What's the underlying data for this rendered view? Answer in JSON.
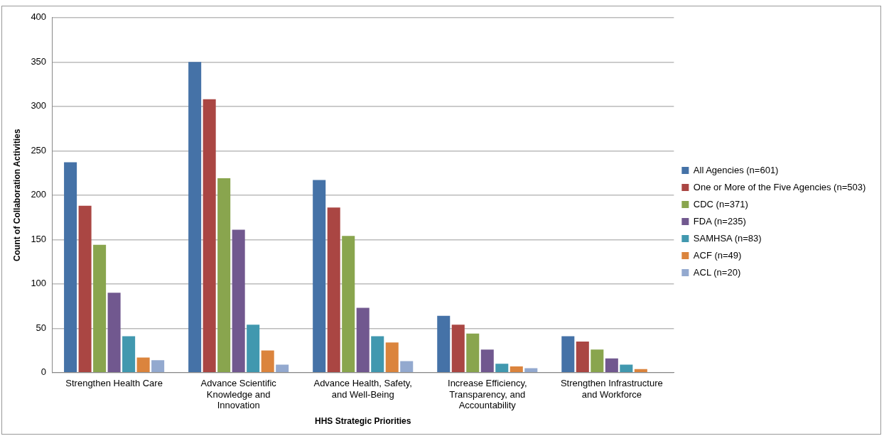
{
  "chart_data": {
    "type": "bar",
    "xlabel": "HHS Strategic Priorities",
    "ylabel": "Count of Collaboration Activities",
    "categories": [
      "Strengthen Health Care",
      "Advance Scientific Knowledge and Innovation",
      "Advance Health, Safety, and Well-Being",
      "Increase Efficiency, Transparency, and Accountability",
      "Strengthen Infrastructure and Workforce"
    ],
    "series": [
      {
        "name": "All Agencies (n=601)",
        "color": "#4572a7",
        "values": [
          237,
          350,
          217,
          64,
          41
        ]
      },
      {
        "name": "One or More of the Five Agencies (n=503)",
        "color": "#aa4643",
        "values": [
          188,
          308,
          186,
          54,
          35
        ]
      },
      {
        "name": "CDC (n=371)",
        "color": "#89a54e",
        "values": [
          144,
          219,
          154,
          44,
          26
        ]
      },
      {
        "name": "FDA (n=235)",
        "color": "#71588f",
        "values": [
          90,
          161,
          73,
          26,
          16
        ]
      },
      {
        "name": "SAMHSA (n=83)",
        "color": "#4198af",
        "values": [
          41,
          54,
          41,
          10,
          9
        ]
      },
      {
        "name": "ACF (n=49)",
        "color": "#db843d",
        "values": [
          17,
          25,
          34,
          7,
          4
        ]
      },
      {
        "name": "ACL (n=20)",
        "color": "#93a9cf",
        "values": [
          14,
          9,
          13,
          5,
          0
        ]
      }
    ],
    "ylim": [
      0,
      400
    ],
    "yticks": [
      0,
      50,
      100,
      150,
      200,
      250,
      300,
      350,
      400
    ],
    "grid": "y",
    "legend": "right"
  }
}
